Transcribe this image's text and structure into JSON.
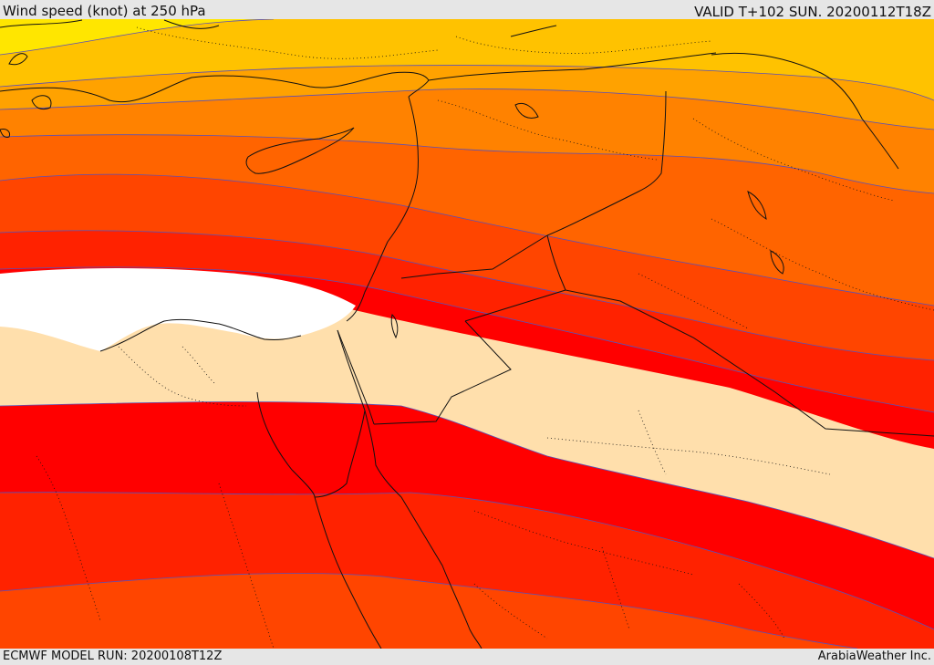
{
  "header": {
    "title": "Wind speed (knot) at 250 hPa",
    "valid": "VALID T+102 SUN. 20200112T18Z"
  },
  "footer": {
    "model_run": "ECMWF MODEL RUN: 20200108T12Z",
    "credit": "ArabiaWeather Inc."
  },
  "colors": {
    "yellow": "#ffe600",
    "gold": "#ffc200",
    "amber": "#ffa200",
    "orange": "#ff8200",
    "dark_orange": "#ff6400",
    "red_orange": "#ff4500",
    "red": "#ff2200",
    "deep_red": "#ff0000",
    "calm": "#ffdfac",
    "jet_core": "#ffffff",
    "contour": "#5a50b8",
    "border": "#111111"
  }
}
